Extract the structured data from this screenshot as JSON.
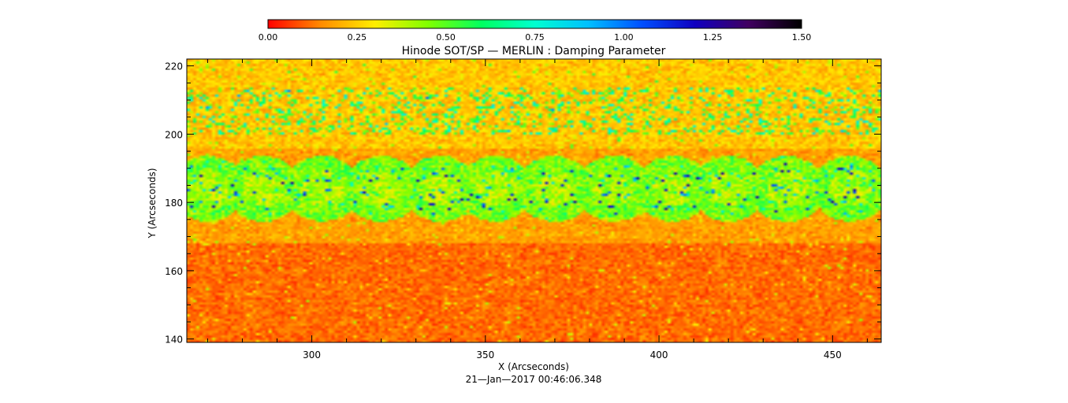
{
  "chart_data": {
    "type": "heatmap",
    "title": "Hinode SOT/SP — MERLIN : Damping Parameter",
    "xlabel": "X (Arcseconds)",
    "ylabel": "Y (Arcseconds)",
    "footer": "21—Jan—2017 00:46:06.348",
    "xlim": [
      264,
      464
    ],
    "ylim": [
      139,
      222
    ],
    "x_ticks": [
      300,
      350,
      400,
      450
    ],
    "x_tick_labels": [
      "300",
      "350",
      "400",
      "450"
    ],
    "y_ticks": [
      140,
      160,
      180,
      200,
      220
    ],
    "y_tick_labels": [
      "140",
      "160",
      "180",
      "200",
      "220"
    ],
    "x_minor_step": 10,
    "y_minor_step": 5,
    "colorbar": {
      "range": [
        0.0,
        1.5
      ],
      "ticks": [
        0.0,
        0.25,
        0.5,
        0.75,
        1.0,
        1.25,
        1.5
      ],
      "tick_labels": [
        "0.00",
        "0.25",
        "0.50",
        "0.75",
        "1.00",
        "1.25",
        "1.50"
      ],
      "colormap": [
        "#ff0000",
        "#ff8c00",
        "#ffee00",
        "#80ff00",
        "#00ff60",
        "#00ffd0",
        "#00c0ff",
        "#0050ff",
        "#1000c0",
        "#400060",
        "#000000"
      ]
    },
    "features": [
      {
        "name": "umbra-ring",
        "center": [
          270,
          184
        ],
        "radius": 11
      },
      {
        "name": "umbra-ring",
        "center": [
          286,
          184
        ],
        "radius": 11
      },
      {
        "name": "umbra-ring",
        "center": [
          303,
          184
        ],
        "radius": 11
      },
      {
        "name": "umbra-ring",
        "center": [
          320,
          184
        ],
        "radius": 11
      },
      {
        "name": "umbra-ring",
        "center": [
          337,
          184
        ],
        "radius": 11
      },
      {
        "name": "umbra-ring",
        "center": [
          353,
          184
        ],
        "radius": 11
      },
      {
        "name": "umbra-ring",
        "center": [
          370,
          184
        ],
        "radius": 11
      },
      {
        "name": "umbra-ring",
        "center": [
          387,
          184
        ],
        "radius": 11
      },
      {
        "name": "umbra-ring",
        "center": [
          404,
          184
        ],
        "radius": 11
      },
      {
        "name": "umbra-ring",
        "center": [
          420,
          184
        ],
        "radius": 11
      },
      {
        "name": "umbra-ring",
        "center": [
          437,
          184
        ],
        "radius": 11
      },
      {
        "name": "umbra-ring",
        "center": [
          455,
          184
        ],
        "radius": 11
      }
    ]
  }
}
